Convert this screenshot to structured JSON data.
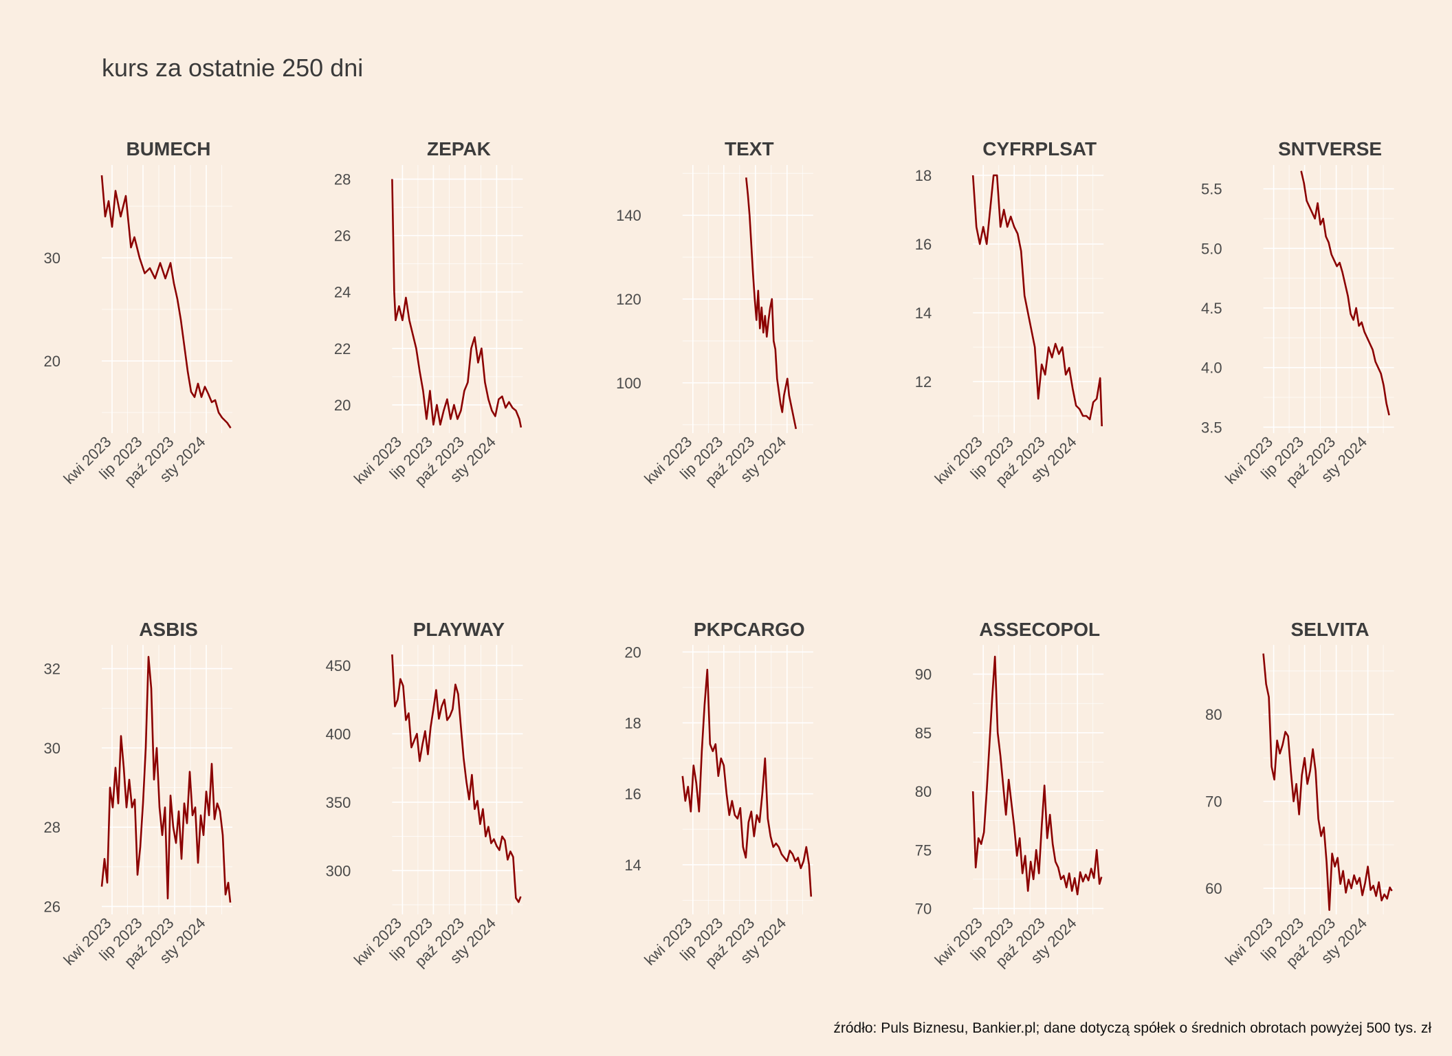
{
  "title": "kurs za ostatnie 250 dni",
  "caption": "źródło: Puls Biznesu, Bankier.pl; dane dotyczą spółek o średnich obrotach powyżej 500 tys. zł",
  "colors": {
    "background": "#FAEEE2",
    "line": "#8B0000",
    "grid": "#FFFFFF"
  },
  "chart_data": [
    {
      "type": "line",
      "panel_title": "BUMECH",
      "x_range": [
        0,
        380
      ],
      "x_ticks": [
        30,
        120,
        212,
        304
      ],
      "x_tick_labels": [
        "kwi 2023",
        "lip 2023",
        "paź 2023",
        "sty 2024"
      ],
      "ylim": [
        13,
        39
      ],
      "y_ticks": [
        20,
        30
      ],
      "y_tick_labels": [
        "20",
        "30"
      ],
      "x": [
        0,
        10,
        20,
        30,
        40,
        55,
        70,
        85,
        95,
        110,
        125,
        140,
        155,
        170,
        185,
        200,
        210,
        220,
        230,
        240,
        250,
        260,
        270,
        280,
        290,
        300,
        310,
        320,
        330,
        340,
        350,
        365,
        375
      ],
      "y": [
        38,
        34,
        35.5,
        33,
        36.5,
        34,
        36,
        31,
        32,
        30,
        28.5,
        29,
        28,
        29.5,
        28,
        29.5,
        27.5,
        26,
        24,
        21.5,
        19,
        17,
        16.5,
        17.8,
        16.5,
        17.5,
        16.8,
        16,
        16.2,
        15,
        14.5,
        14,
        13.5
      ]
    },
    {
      "type": "line",
      "panel_title": "ZEPAK",
      "x_range": [
        0,
        380
      ],
      "x_ticks": [
        30,
        120,
        212,
        304
      ],
      "x_tick_labels": [
        "kwi 2023",
        "lip 2023",
        "paź 2023",
        "sty 2024"
      ],
      "ylim": [
        19,
        28.5
      ],
      "y_ticks": [
        20,
        22,
        24,
        26,
        28
      ],
      "y_tick_labels": [
        "20",
        "22",
        "24",
        "26",
        "28"
      ],
      "x": [
        0,
        3,
        6,
        10,
        20,
        30,
        40,
        50,
        60,
        70,
        80,
        90,
        100,
        110,
        120,
        130,
        140,
        150,
        160,
        170,
        180,
        190,
        200,
        210,
        220,
        230,
        240,
        250,
        260,
        270,
        280,
        290,
        300,
        310,
        320,
        330,
        340,
        350,
        360,
        370,
        375
      ],
      "y": [
        28,
        26,
        24,
        23,
        23.5,
        23,
        23.8,
        23,
        22.5,
        22,
        21.2,
        20.5,
        19.5,
        20.5,
        19.3,
        20,
        19.3,
        19.8,
        20.2,
        19.5,
        20,
        19.5,
        19.8,
        20.5,
        20.8,
        22,
        22.4,
        21.5,
        22,
        20.8,
        20.2,
        19.8,
        19.6,
        20.2,
        20.3,
        19.9,
        20.1,
        19.9,
        19.8,
        19.5,
        19.2
      ]
    },
    {
      "type": "line",
      "panel_title": "TEXT",
      "x_range": [
        0,
        380
      ],
      "x_ticks": [
        30,
        120,
        212,
        304
      ],
      "x_tick_labels": [
        "kwi 2023",
        "lip 2023",
        "paź 2023",
        "sty 2024"
      ],
      "ylim": [
        88,
        152
      ],
      "y_ticks": [
        100,
        120,
        140
      ],
      "y_tick_labels": [
        "100",
        "120",
        "140"
      ],
      "x": [
        185,
        190,
        195,
        200,
        205,
        210,
        215,
        220,
        225,
        230,
        235,
        240,
        245,
        250,
        255,
        260,
        265,
        270,
        275,
        280,
        285,
        290,
        295,
        300,
        305,
        310,
        315,
        320,
        325,
        330
      ],
      "y": [
        149,
        145,
        140,
        133,
        126,
        120,
        115,
        122,
        113,
        118,
        112,
        116,
        111,
        115,
        118,
        120,
        110,
        108,
        101,
        98,
        95,
        93,
        97,
        99,
        101,
        97,
        95,
        93,
        91,
        89
      ]
    },
    {
      "type": "line",
      "panel_title": "CYFRPLSAT",
      "x_range": [
        0,
        380
      ],
      "x_ticks": [
        30,
        120,
        212,
        304
      ],
      "x_tick_labels": [
        "kwi 2023",
        "lip 2023",
        "paź 2023",
        "sty 2024"
      ],
      "ylim": [
        10.5,
        18.3
      ],
      "y_ticks": [
        12,
        14,
        16,
        18
      ],
      "y_tick_labels": [
        "12",
        "14",
        "16",
        "18"
      ],
      "x": [
        0,
        10,
        20,
        30,
        40,
        50,
        60,
        70,
        80,
        90,
        100,
        110,
        120,
        130,
        140,
        150,
        160,
        170,
        180,
        190,
        200,
        210,
        220,
        230,
        240,
        250,
        260,
        270,
        280,
        290,
        300,
        310,
        320,
        330,
        340,
        350,
        360,
        370,
        375
      ],
      "y": [
        18,
        16.5,
        16,
        16.5,
        16,
        17,
        18,
        18,
        16.5,
        17,
        16.5,
        16.8,
        16.5,
        16.3,
        15.8,
        14.5,
        14,
        13.5,
        13,
        11.5,
        12.5,
        12.2,
        13,
        12.7,
        13.1,
        12.8,
        13,
        12.2,
        12.4,
        11.8,
        11.3,
        11.2,
        11,
        11,
        10.9,
        11.4,
        11.5,
        12.1,
        10.7
      ]
    },
    {
      "type": "line",
      "panel_title": "SNTVERSE",
      "x_range": [
        0,
        380
      ],
      "x_ticks": [
        30,
        120,
        212,
        304
      ],
      "x_tick_labels": [
        "kwi 2023",
        "lip 2023",
        "paź 2023",
        "sty 2024"
      ],
      "ylim": [
        3.45,
        5.7
      ],
      "y_ticks": [
        3.5,
        4.0,
        4.5,
        5.0,
        5.5
      ],
      "y_tick_labels": [
        "3.5",
        "4.0",
        "4.5",
        "5.0",
        "5.5"
      ],
      "x": [
        110,
        118,
        126,
        134,
        142,
        150,
        158,
        166,
        174,
        182,
        190,
        198,
        206,
        214,
        222,
        230,
        238,
        246,
        254,
        262,
        270,
        278,
        286,
        294,
        302,
        310,
        318,
        326,
        334,
        342,
        350,
        358,
        366
      ],
      "y": [
        5.65,
        5.55,
        5.4,
        5.35,
        5.3,
        5.25,
        5.38,
        5.2,
        5.25,
        5.1,
        5.05,
        4.95,
        4.9,
        4.85,
        4.88,
        4.8,
        4.7,
        4.6,
        4.45,
        4.4,
        4.5,
        4.35,
        4.38,
        4.3,
        4.25,
        4.2,
        4.15,
        4.05,
        4.0,
        3.95,
        3.85,
        3.7,
        3.6
      ]
    },
    {
      "type": "line",
      "panel_title": "ASBIS",
      "x_range": [
        0,
        380
      ],
      "x_ticks": [
        30,
        120,
        212,
        304
      ],
      "x_tick_labels": [
        "kwi 2023",
        "lip 2023",
        "paź 2023",
        "sty 2024"
      ],
      "ylim": [
        25.8,
        32.6
      ],
      "y_ticks": [
        26,
        28,
        30,
        32
      ],
      "y_tick_labels": [
        "26",
        "28",
        "30",
        "32"
      ],
      "x": [
        0,
        8,
        16,
        24,
        32,
        40,
        48,
        56,
        64,
        72,
        80,
        88,
        96,
        104,
        112,
        120,
        128,
        136,
        144,
        152,
        160,
        168,
        176,
        184,
        192,
        200,
        208,
        216,
        224,
        232,
        240,
        248,
        256,
        264,
        272,
        280,
        288,
        296,
        304,
        312,
        320,
        328,
        336,
        344,
        352,
        360,
        368,
        374
      ],
      "y": [
        26.5,
        27.2,
        26.6,
        29,
        28.5,
        29.5,
        28.6,
        30.3,
        29.5,
        28.5,
        29.2,
        28.5,
        28.7,
        26.8,
        27.5,
        28.6,
        30,
        32.3,
        31.5,
        29.2,
        30,
        28.5,
        27.8,
        28.5,
        26.2,
        28.8,
        28,
        27.6,
        28.4,
        27.2,
        28.6,
        28.1,
        29.4,
        28.3,
        28.5,
        27.1,
        28.3,
        27.8,
        28.9,
        28.3,
        29.6,
        28.2,
        28.6,
        28.4,
        27.8,
        26.3,
        26.6,
        26.1
      ]
    },
    {
      "type": "line",
      "panel_title": "PLAYWAY",
      "x_range": [
        0,
        380
      ],
      "x_ticks": [
        30,
        120,
        212,
        304
      ],
      "x_tick_labels": [
        "kwi 2023",
        "lip 2023",
        "paź 2023",
        "sty 2024"
      ],
      "ylim": [
        268,
        465
      ],
      "y_ticks": [
        300,
        350,
        400,
        450
      ],
      "y_tick_labels": [
        "300",
        "350",
        "400",
        "450"
      ],
      "x": [
        0,
        8,
        16,
        24,
        32,
        40,
        48,
        56,
        64,
        72,
        80,
        88,
        96,
        104,
        112,
        120,
        128,
        136,
        144,
        152,
        160,
        168,
        176,
        184,
        192,
        200,
        208,
        216,
        224,
        232,
        240,
        248,
        256,
        264,
        272,
        280,
        288,
        296,
        304,
        312,
        320,
        328,
        336,
        344,
        352,
        360,
        368,
        374
      ],
      "y": [
        458,
        420,
        425,
        440,
        435,
        410,
        415,
        390,
        395,
        400,
        380,
        392,
        402,
        385,
        405,
        418,
        432,
        411,
        420,
        425,
        410,
        413,
        418,
        436,
        429,
        405,
        382,
        365,
        352,
        370,
        345,
        351,
        334,
        345,
        325,
        332,
        320,
        323,
        318,
        315,
        325,
        322,
        308,
        314,
        310,
        280,
        277,
        281
      ]
    },
    {
      "type": "line",
      "panel_title": "PKPCARGO",
      "x_range": [
        0,
        380
      ],
      "x_ticks": [
        30,
        120,
        212,
        304
      ],
      "x_tick_labels": [
        "kwi 2023",
        "lip 2023",
        "paź 2023",
        "sty 2024"
      ],
      "ylim": [
        12.6,
        20.2
      ],
      "y_ticks": [
        14,
        16,
        18,
        20
      ],
      "y_tick_labels": [
        "14",
        "16",
        "18",
        "20"
      ],
      "x": [
        0,
        8,
        16,
        24,
        32,
        40,
        48,
        56,
        64,
        72,
        80,
        88,
        96,
        104,
        112,
        120,
        128,
        136,
        144,
        152,
        160,
        168,
        176,
        184,
        192,
        200,
        208,
        216,
        224,
        232,
        240,
        248,
        256,
        264,
        272,
        280,
        288,
        296,
        304,
        312,
        320,
        328,
        336,
        344,
        352,
        360,
        368,
        374
      ],
      "y": [
        16.5,
        15.8,
        16.2,
        15.5,
        16.8,
        16.3,
        15.5,
        17.2,
        18.5,
        19.5,
        17.4,
        17.2,
        17.4,
        16.5,
        17,
        16.8,
        16,
        15.4,
        15.8,
        15.4,
        15.3,
        15.6,
        14.5,
        14.2,
        15.2,
        15.5,
        14.8,
        15.4,
        15.2,
        16,
        17,
        15.3,
        14.8,
        14.5,
        14.6,
        14.5,
        14.3,
        14.2,
        14.1,
        14.4,
        14.3,
        14.1,
        14.2,
        13.9,
        14.1,
        14.5,
        14.0,
        13.1
      ]
    },
    {
      "type": "line",
      "panel_title": "ASSECOPOL",
      "x_range": [
        0,
        380
      ],
      "x_ticks": [
        30,
        120,
        212,
        304
      ],
      "x_tick_labels": [
        "kwi 2023",
        "lip 2023",
        "paź 2023",
        "sty 2024"
      ],
      "ylim": [
        69.5,
        92.5
      ],
      "y_ticks": [
        70,
        75,
        80,
        85,
        90
      ],
      "y_tick_labels": [
        "70",
        "75",
        "80",
        "85",
        "90"
      ],
      "x": [
        0,
        8,
        16,
        24,
        32,
        40,
        48,
        56,
        64,
        72,
        80,
        88,
        96,
        104,
        112,
        120,
        128,
        136,
        144,
        152,
        160,
        168,
        176,
        184,
        192,
        200,
        208,
        216,
        224,
        232,
        240,
        248,
        256,
        264,
        272,
        280,
        288,
        296,
        304,
        312,
        320,
        328,
        336,
        344,
        352,
        360,
        368,
        374
      ],
      "y": [
        80,
        73.5,
        76,
        75.5,
        76.5,
        80,
        84,
        88,
        91.5,
        85,
        83,
        80.5,
        78,
        81,
        79,
        77,
        74.5,
        76,
        73,
        74.5,
        71.5,
        74,
        72.5,
        75,
        73,
        77,
        80.5,
        76,
        78,
        75.5,
        74,
        73.5,
        72.5,
        72.8,
        71.8,
        73,
        71.5,
        72.6,
        71.2,
        73.1,
        72.3,
        72.9,
        72.4,
        73.4,
        72.6,
        75,
        72.1,
        72.7
      ]
    },
    {
      "type": "line",
      "panel_title": "SELVITA",
      "x_range": [
        0,
        380
      ],
      "x_ticks": [
        30,
        120,
        212,
        304
      ],
      "x_tick_labels": [
        "kwi 2023",
        "lip 2023",
        "paź 2023",
        "sty 2024"
      ],
      "ylim": [
        57,
        88
      ],
      "y_ticks": [
        60,
        70,
        80
      ],
      "y_tick_labels": [
        "60",
        "70",
        "80"
      ],
      "x": [
        0,
        8,
        16,
        24,
        32,
        40,
        48,
        56,
        64,
        72,
        80,
        88,
        96,
        104,
        112,
        120,
        128,
        136,
        144,
        152,
        160,
        168,
        176,
        184,
        192,
        200,
        208,
        216,
        224,
        232,
        240,
        248,
        256,
        264,
        272,
        280,
        288,
        296,
        304,
        312,
        320,
        328,
        336,
        344,
        352,
        360,
        368,
        374
      ],
      "y": [
        87,
        83.5,
        82,
        74,
        72.5,
        77,
        75.5,
        76.5,
        78,
        77.5,
        73.5,
        70,
        72,
        68.5,
        73,
        75,
        72,
        73.5,
        76,
        73.5,
        68,
        66,
        67,
        63,
        57.5,
        64,
        62.5,
        63.5,
        60.5,
        62,
        59.5,
        61,
        60,
        61.5,
        60.5,
        61.2,
        59.2,
        60.6,
        62.5,
        59.8,
        60.3,
        59.1,
        60.7,
        58.6,
        59.3,
        58.8,
        60.1,
        59.7
      ]
    }
  ]
}
